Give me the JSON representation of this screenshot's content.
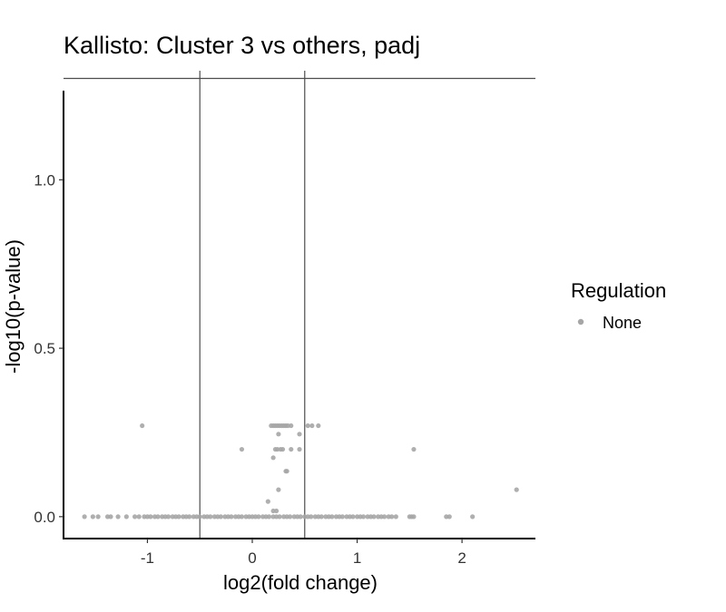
{
  "chart_data": {
    "type": "scatter",
    "title": "Kallisto: Cluster 3 vs others, padj",
    "xlabel": "log2(fold change)",
    "ylabel": "-log10(p-value)",
    "xlim": [
      -1.8,
      2.7
    ],
    "ylim": [
      -0.065,
      1.305
    ],
    "x_ticks": [
      -1,
      0,
      1,
      2
    ],
    "x_tick_labels": [
      "-1",
      "0",
      "1",
      "2"
    ],
    "y_ticks": [
      0.0,
      0.5,
      1.0
    ],
    "y_tick_labels": [
      "0.0",
      "0.5",
      "1.0"
    ],
    "reference_lines": {
      "vertical": [
        -0.5,
        0.5
      ],
      "horizontal": [
        1.301
      ]
    },
    "grid": false,
    "legend": {
      "title": "Regulation",
      "position": "right",
      "entries": [
        "None"
      ]
    },
    "colors": {
      "None": "#a6a6a6",
      "reference_line": "#4d4d4d",
      "axis": "#000000"
    },
    "series": [
      {
        "name": "None",
        "points": [
          [
            -1.05,
            0.27
          ],
          [
            0.18,
            0.27
          ],
          [
            0.2,
            0.27
          ],
          [
            0.22,
            0.27
          ],
          [
            0.24,
            0.27
          ],
          [
            0.26,
            0.27
          ],
          [
            0.28,
            0.27
          ],
          [
            0.3,
            0.27
          ],
          [
            0.32,
            0.27
          ],
          [
            0.34,
            0.27
          ],
          [
            0.37,
            0.27
          ],
          [
            0.53,
            0.27
          ],
          [
            0.57,
            0.27
          ],
          [
            0.63,
            0.27
          ],
          [
            0.25,
            0.245
          ],
          [
            0.45,
            0.245
          ],
          [
            -0.1,
            0.2
          ],
          [
            0.22,
            0.2
          ],
          [
            0.24,
            0.2
          ],
          [
            0.27,
            0.2
          ],
          [
            0.29,
            0.2
          ],
          [
            0.37,
            0.2
          ],
          [
            0.45,
            0.2
          ],
          [
            1.54,
            0.2
          ],
          [
            0.2,
            0.175
          ],
          [
            0.32,
            0.135
          ],
          [
            0.33,
            0.135
          ],
          [
            0.25,
            0.08
          ],
          [
            2.52,
            0.08
          ],
          [
            0.15,
            0.045
          ],
          [
            0.2,
            0.017
          ],
          [
            0.23,
            0.017
          ],
          [
            -1.6,
            0.0
          ],
          [
            -1.52,
            0.0
          ],
          [
            -1.47,
            0.0
          ],
          [
            -1.38,
            0.0
          ],
          [
            -1.35,
            0.0
          ],
          [
            -1.28,
            0.0
          ],
          [
            -1.2,
            0.0
          ],
          [
            -1.12,
            0.0
          ],
          [
            -1.08,
            0.0
          ],
          [
            -1.03,
            0.0
          ],
          [
            -1.0,
            0.0
          ],
          [
            -0.97,
            0.0
          ],
          [
            -0.93,
            0.0
          ],
          [
            -0.9,
            0.0
          ],
          [
            -0.86,
            0.0
          ],
          [
            -0.83,
            0.0
          ],
          [
            -0.8,
            0.0
          ],
          [
            -0.76,
            0.0
          ],
          [
            -0.73,
            0.0
          ],
          [
            -0.7,
            0.0
          ],
          [
            -0.66,
            0.0
          ],
          [
            -0.63,
            0.0
          ],
          [
            -0.6,
            0.0
          ],
          [
            -0.56,
            0.0
          ],
          [
            -0.53,
            0.0
          ],
          [
            -0.5,
            0.0
          ],
          [
            -0.46,
            0.0
          ],
          [
            -0.43,
            0.0
          ],
          [
            -0.4,
            0.0
          ],
          [
            -0.36,
            0.0
          ],
          [
            -0.33,
            0.0
          ],
          [
            -0.3,
            0.0
          ],
          [
            -0.26,
            0.0
          ],
          [
            -0.23,
            0.0
          ],
          [
            -0.2,
            0.0
          ],
          [
            -0.16,
            0.0
          ],
          [
            -0.13,
            0.0
          ],
          [
            -0.1,
            0.0
          ],
          [
            -0.06,
            0.0
          ],
          [
            -0.03,
            0.0
          ],
          [
            0.0,
            0.0
          ],
          [
            0.03,
            0.0
          ],
          [
            0.06,
            0.0
          ],
          [
            0.1,
            0.0
          ],
          [
            0.13,
            0.0
          ],
          [
            0.16,
            0.0
          ],
          [
            0.2,
            0.0
          ],
          [
            0.23,
            0.0
          ],
          [
            0.26,
            0.0
          ],
          [
            0.3,
            0.0
          ],
          [
            0.33,
            0.0
          ],
          [
            0.36,
            0.0
          ],
          [
            0.4,
            0.0
          ],
          [
            0.43,
            0.0
          ],
          [
            0.46,
            0.0
          ],
          [
            0.5,
            0.0
          ],
          [
            0.53,
            0.0
          ],
          [
            0.56,
            0.0
          ],
          [
            0.6,
            0.0
          ],
          [
            0.63,
            0.0
          ],
          [
            0.66,
            0.0
          ],
          [
            0.7,
            0.0
          ],
          [
            0.73,
            0.0
          ],
          [
            0.76,
            0.0
          ],
          [
            0.8,
            0.0
          ],
          [
            0.83,
            0.0
          ],
          [
            0.86,
            0.0
          ],
          [
            0.9,
            0.0
          ],
          [
            0.93,
            0.0
          ],
          [
            0.96,
            0.0
          ],
          [
            1.0,
            0.0
          ],
          [
            1.03,
            0.0
          ],
          [
            1.06,
            0.0
          ],
          [
            1.1,
            0.0
          ],
          [
            1.13,
            0.0
          ],
          [
            1.16,
            0.0
          ],
          [
            1.2,
            0.0
          ],
          [
            1.23,
            0.0
          ],
          [
            1.26,
            0.0
          ],
          [
            1.3,
            0.0
          ],
          [
            1.33,
            0.0
          ],
          [
            1.37,
            0.0
          ],
          [
            1.5,
            0.0
          ],
          [
            1.52,
            0.0
          ],
          [
            1.54,
            0.0
          ],
          [
            1.85,
            0.0
          ],
          [
            1.88,
            0.0
          ],
          [
            2.1,
            0.0
          ]
        ]
      }
    ]
  }
}
